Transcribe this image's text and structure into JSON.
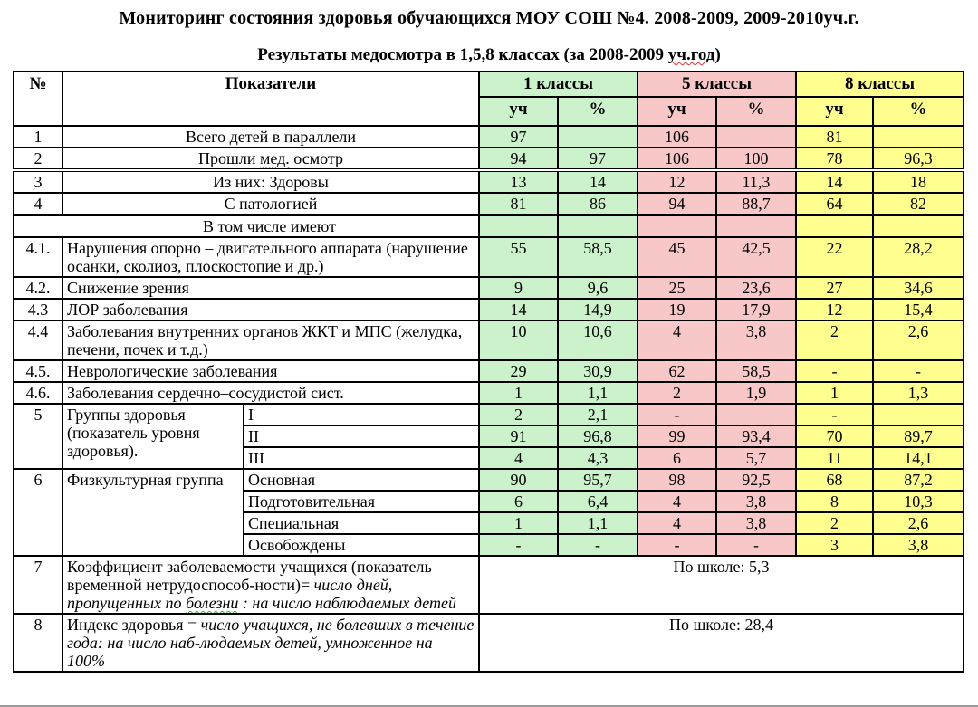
{
  "page": {
    "title": "Мониторинг состояния здоровья обучающихся МОУ СОШ №4. 2008-2009, 2009-2010уч.г.",
    "subtitle": {
      "pre": "Результаты медосмотра в 1,5,8 классах (за 2008-2009 ",
      "flagged": "уч.год",
      "post": ")"
    }
  },
  "colors": {
    "grade1": "#cbf2cb",
    "grade5": "#f8c8c8",
    "grade8": "#ffff90",
    "border": "#000000",
    "spellcheck_red": "#e03030",
    "spellcheck_green": "#3daa3d"
  },
  "table": {
    "header": {
      "num": "№",
      "indicators": "Показатели",
      "groups": [
        {
          "label": "1 классы",
          "color": "#cbf2cb"
        },
        {
          "label": "5 классы",
          "color": "#f8c8c8"
        },
        {
          "label": "8 классы",
          "color": "#ffff90"
        }
      ],
      "subheaders": [
        "уч",
        "%"
      ]
    },
    "rows": [
      {
        "kind": "data",
        "num": "1",
        "center": true,
        "label": "Всего детей в параллели",
        "cells": [
          "97",
          "",
          "106",
          "",
          "81",
          ""
        ]
      },
      {
        "kind": "data",
        "num": "2",
        "center": true,
        "thick_bottom": "dbl",
        "label": [
          {
            "t": "Прошли "
          },
          {
            "t": "мед.",
            "u": "green"
          },
          {
            "t": " осмотр"
          }
        ],
        "cells": [
          "94",
          "97",
          "106",
          "100",
          "78",
          "96,3"
        ]
      },
      {
        "kind": "data",
        "num": "3",
        "center": true,
        "label": "Из них: Здоровы",
        "cells": [
          "13",
          "14",
          "12",
          "11,3",
          "14",
          "18"
        ]
      },
      {
        "kind": "data",
        "num": "4",
        "center": true,
        "thick_bottom": "hvy",
        "label": "С патологией",
        "cells": [
          "81",
          "86",
          "94",
          "88,7",
          "64",
          "82"
        ]
      },
      {
        "kind": "section",
        "label": "В том числе имеют",
        "cells": [
          "",
          "",
          "",
          "",
          "",
          ""
        ]
      },
      {
        "kind": "data",
        "num": "4.1.",
        "label": "Нарушения опорно – двигательного аппарата (нарушение осанки, сколиоз, плоскостопие и др.)",
        "cells": [
          "55",
          "58,5",
          "45",
          "42,5",
          "22",
          "28,2"
        ]
      },
      {
        "kind": "data",
        "num": "4.2.",
        "label": "Снижение зрения",
        "cells": [
          "9",
          "9,6",
          "25",
          "23,6",
          "27",
          "34,6"
        ]
      },
      {
        "kind": "data",
        "num": "4.3",
        "label": "ЛОР заболевания",
        "cells": [
          "14",
          "14,9",
          "19",
          "17,9",
          "12",
          "15,4"
        ]
      },
      {
        "kind": "data",
        "num": "4.4",
        "label": "Заболевания внутренних органов ЖКТ и МПС (желудка, печени, почек и т.д.)",
        "cells": [
          "10",
          "10,6",
          "4",
          "3,8",
          "2",
          "2,6"
        ]
      },
      {
        "kind": "data",
        "num": "4.5.",
        "label": "Неврологические заболевания",
        "cells": [
          "29",
          "30,9",
          "62",
          "58,5",
          "-",
          "-"
        ]
      },
      {
        "kind": "data",
        "num": "4.6.",
        "label": "Заболевания сердечно–сосудистой сист.",
        "cells": [
          "1",
          "1,1",
          "2",
          "1,9",
          "1",
          "1,3"
        ]
      },
      {
        "kind": "group",
        "num": "5",
        "label": "Группы здоровья (показатель уровня здоровья).",
        "subrows": [
          {
            "label": "I",
            "cells": [
              "2",
              "2,1",
              "-",
              "",
              "-",
              ""
            ]
          },
          {
            "label": "II",
            "cells": [
              "91",
              "96,8",
              "99",
              "93,4",
              "70",
              "89,7"
            ]
          },
          {
            "label": "III",
            "cells": [
              "4",
              "4,3",
              "6",
              "5,7",
              "11",
              "14,1"
            ]
          }
        ]
      },
      {
        "kind": "group",
        "num": "6",
        "label": "Физкультурная группа",
        "subrows": [
          {
            "label": "Основная",
            "cells": [
              "90",
              "95,7",
              "98",
              "92,5",
              "68",
              "87,2"
            ]
          },
          {
            "label": "Подготовительная",
            "cells": [
              "6",
              "6,4",
              "4",
              "3,8",
              "8",
              "10,3"
            ]
          },
          {
            "label": "Специальная",
            "cells": [
              "1",
              "1,1",
              "4",
              "3,8",
              "2",
              "2,6"
            ]
          },
          {
            "label": "Освобождены",
            "cells": [
              "-",
              "-",
              "-",
              "-",
              "3",
              "3,8"
            ]
          }
        ]
      },
      {
        "kind": "wide",
        "num": "7",
        "label": [
          {
            "t": "Коэффициент заболеваемости учащихся (показатель временной нетрудоспособ-ности)= "
          },
          {
            "t": "число дней, пропущенных по ",
            "i": true
          },
          {
            "t": "болезни",
            "i": true,
            "u": "green"
          },
          {
            "t": " : на число наблюдаемых детей",
            "i": true
          }
        ],
        "value": "По школе: 5,3"
      },
      {
        "kind": "wide",
        "num": "8",
        "label": [
          {
            "t": "Индекс здоровья = "
          },
          {
            "t": "число учащихся, не болевших в течение года: на число наб-людаемых детей, умноженное на 100%",
            "i": true
          }
        ],
        "value": "По школе: 28,4"
      }
    ]
  }
}
